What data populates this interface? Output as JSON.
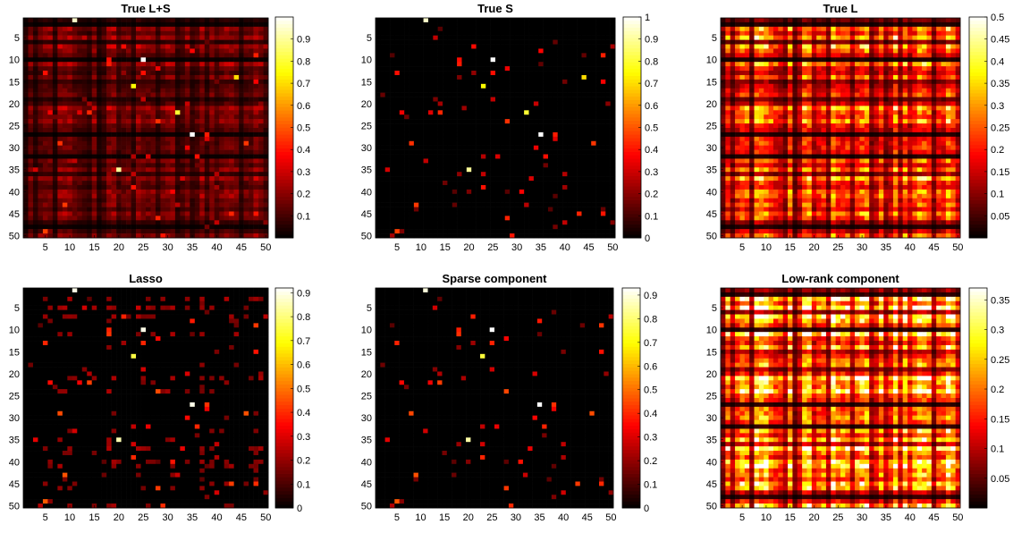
{
  "figure": {
    "colormap": "hot",
    "panels": [
      {
        "title": "True L+S",
        "cmax": 1.0,
        "cticks": [
          "0.1",
          "0.2",
          "0.3",
          "0.4",
          "0.5",
          "0.6",
          "0.7",
          "0.8",
          "0.9"
        ],
        "cvals": [
          0.1,
          0.2,
          0.3,
          0.4,
          0.5,
          0.6,
          0.7,
          0.8,
          0.9
        ],
        "kind": "mixed"
      },
      {
        "title": "True S",
        "cmax": 1.0,
        "cticks": [
          "0",
          "0.1",
          "0.2",
          "0.3",
          "0.4",
          "0.5",
          "0.6",
          "0.7",
          "0.8",
          "0.9",
          "1"
        ],
        "cvals": [
          0,
          0.1,
          0.2,
          0.3,
          0.4,
          0.5,
          0.6,
          0.7,
          0.8,
          0.9,
          1.0
        ],
        "kind": "sparse"
      },
      {
        "title": "True L",
        "cmax": 0.5,
        "cticks": [
          "0.05",
          "0.1",
          "0.15",
          "0.2",
          "0.25",
          "0.3",
          "0.35",
          "0.4",
          "0.45",
          "0.5"
        ],
        "cvals": [
          0.05,
          0.1,
          0.15,
          0.2,
          0.25,
          0.3,
          0.35,
          0.4,
          0.45,
          0.5
        ],
        "kind": "lowrank"
      },
      {
        "title": "Lasso",
        "cmax": 0.92,
        "cticks": [
          "0",
          "0.1",
          "0.2",
          "0.3",
          "0.4",
          "0.5",
          "0.6",
          "0.7",
          "0.8",
          "0.9"
        ],
        "cvals": [
          0,
          0.1,
          0.2,
          0.3,
          0.4,
          0.5,
          0.6,
          0.7,
          0.8,
          0.9
        ],
        "kind": "lasso"
      },
      {
        "title": "Sparse component",
        "cmax": 0.93,
        "cticks": [
          "0",
          "0.1",
          "0.2",
          "0.3",
          "0.4",
          "0.5",
          "0.6",
          "0.7",
          "0.8",
          "0.9"
        ],
        "cvals": [
          0,
          0.1,
          0.2,
          0.3,
          0.4,
          0.5,
          0.6,
          0.7,
          0.8,
          0.9
        ],
        "kind": "sparse"
      },
      {
        "title": "Low-rank component",
        "cmax": 0.37,
        "cticks": [
          "0.05",
          "0.1",
          "0.15",
          "0.2",
          "0.25",
          "0.3",
          "0.35"
        ],
        "cvals": [
          0.05,
          0.1,
          0.15,
          0.2,
          0.25,
          0.3,
          0.35
        ],
        "kind": "lowrank"
      }
    ],
    "x_ticks": [
      "5",
      "10",
      "15",
      "20",
      "25",
      "30",
      "35",
      "40",
      "45",
      "50"
    ],
    "y_ticks": [
      "5",
      "10",
      "15",
      "20",
      "25",
      "30",
      "35",
      "40",
      "45",
      "50"
    ]
  },
  "chart_data": [
    {
      "type": "heatmap",
      "title": "True L+S",
      "n_rows": 50,
      "n_cols": 50,
      "clim": [
        0,
        1.0
      ],
      "x_ticks": [
        5,
        10,
        15,
        20,
        25,
        30,
        35,
        40,
        45,
        50
      ],
      "y_ticks": [
        5,
        10,
        15,
        20,
        25,
        30,
        35,
        40,
        45,
        50
      ],
      "highlights": [
        {
          "row": 1,
          "col": 11,
          "value": 0.95
        },
        {
          "row": 10,
          "col": 25,
          "value": 1.0
        },
        {
          "row": 14,
          "col": 44,
          "value": 0.7
        },
        {
          "row": 16,
          "col": 23,
          "value": 0.75
        },
        {
          "row": 22,
          "col": 32,
          "value": 0.8
        },
        {
          "row": 27,
          "col": 35,
          "value": 1.0
        },
        {
          "row": 35,
          "col": 20,
          "value": 0.9
        }
      ]
    },
    {
      "type": "heatmap",
      "title": "True S",
      "n_rows": 50,
      "n_cols": 50,
      "clim": [
        0,
        1.0
      ],
      "x_ticks": [
        5,
        10,
        15,
        20,
        25,
        30,
        35,
        40,
        45,
        50
      ],
      "y_ticks": [
        5,
        10,
        15,
        20,
        25,
        30,
        35,
        40,
        45,
        50
      ],
      "highlights": [
        {
          "row": 1,
          "col": 11,
          "value": 0.95
        },
        {
          "row": 10,
          "col": 25,
          "value": 1.0
        },
        {
          "row": 14,
          "col": 44,
          "value": 0.7
        },
        {
          "row": 16,
          "col": 23,
          "value": 0.75
        },
        {
          "row": 22,
          "col": 32,
          "value": 0.8
        },
        {
          "row": 27,
          "col": 35,
          "value": 1.0
        },
        {
          "row": 35,
          "col": 20,
          "value": 0.9
        }
      ]
    },
    {
      "type": "heatmap",
      "title": "True L",
      "n_rows": 50,
      "n_cols": 50,
      "clim": [
        0,
        0.5
      ],
      "x_ticks": [
        5,
        10,
        15,
        20,
        25,
        30,
        35,
        40,
        45,
        50
      ],
      "y_ticks": [
        5,
        10,
        15,
        20,
        25,
        30,
        35,
        40,
        45,
        50
      ],
      "note_bright_rows": [
        5,
        21,
        37
      ],
      "note_bright_cols": [
        8,
        19,
        24,
        37,
        48
      ]
    },
    {
      "type": "heatmap",
      "title": "Lasso",
      "n_rows": 50,
      "n_cols": 50,
      "clim": [
        0,
        0.92
      ],
      "x_ticks": [
        5,
        10,
        15,
        20,
        25,
        30,
        35,
        40,
        45,
        50
      ],
      "y_ticks": [
        5,
        10,
        15,
        20,
        25,
        30,
        35,
        40,
        45,
        50
      ],
      "highlights": [
        {
          "row": 1,
          "col": 11,
          "value": 0.9
        },
        {
          "row": 10,
          "col": 25,
          "value": 0.9
        },
        {
          "row": 16,
          "col": 23,
          "value": 0.75
        },
        {
          "row": 27,
          "col": 35,
          "value": 0.9
        },
        {
          "row": 35,
          "col": 20,
          "value": 0.85
        }
      ]
    },
    {
      "type": "heatmap",
      "title": "Sparse component",
      "n_rows": 50,
      "n_cols": 50,
      "clim": [
        0,
        0.93
      ],
      "x_ticks": [
        5,
        10,
        15,
        20,
        25,
        30,
        35,
        40,
        45,
        50
      ],
      "y_ticks": [
        5,
        10,
        15,
        20,
        25,
        30,
        35,
        40,
        45,
        50
      ],
      "highlights": [
        {
          "row": 1,
          "col": 11,
          "value": 0.9
        },
        {
          "row": 10,
          "col": 25,
          "value": 0.93
        },
        {
          "row": 16,
          "col": 23,
          "value": 0.75
        },
        {
          "row": 27,
          "col": 35,
          "value": 0.93
        },
        {
          "row": 35,
          "col": 20,
          "value": 0.85
        }
      ]
    },
    {
      "type": "heatmap",
      "title": "Low-rank component",
      "n_rows": 50,
      "n_cols": 50,
      "clim": [
        0,
        0.37
      ],
      "x_ticks": [
        5,
        10,
        15,
        20,
        25,
        30,
        35,
        40,
        45,
        50
      ],
      "y_ticks": [
        5,
        10,
        15,
        20,
        25,
        30,
        35,
        40,
        45,
        50
      ],
      "note_bright_rows": [
        5,
        21,
        37
      ],
      "note_bright_cols": [
        8,
        19,
        24,
        37,
        48
      ]
    }
  ]
}
